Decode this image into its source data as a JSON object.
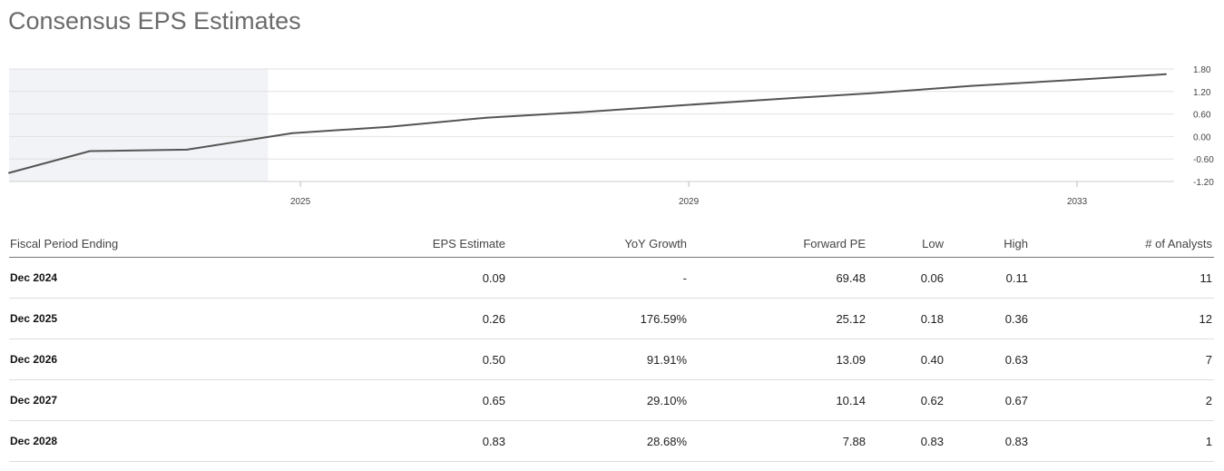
{
  "page_title": "Consensus EPS Estimates",
  "chart_data": {
    "type": "line",
    "x": [
      "2022-01",
      "2022-11",
      "2023-11",
      "2024-12",
      "2025-12",
      "2026-12",
      "2027-12",
      "2028-12",
      "2029-12",
      "2030-12",
      "2031-12",
      "2032-12",
      "2033-12"
    ],
    "series": [
      {
        "values": [
          -0.97,
          -0.39,
          -0.35,
          0.09,
          0.26,
          0.5,
          0.65,
          0.83,
          1.0,
          1.16,
          1.35,
          1.5,
          1.66
        ]
      }
    ],
    "shaded_region": {
      "from": "2022-01",
      "to": "2024-09"
    },
    "x_ticks": [
      "2025",
      "2029",
      "2033"
    ],
    "y_ticks": [
      "1.80",
      "1.20",
      "0.60",
      "0.00",
      "-0.60",
      "-1.20"
    ],
    "ylim": [
      -1.2,
      1.8
    ],
    "grid": true,
    "line_color": "#555555",
    "shade_color": "#f2f3f7"
  },
  "table": {
    "headers": [
      "Fiscal Period Ending",
      "EPS Estimate",
      "YoY Growth",
      "Forward PE",
      "Low",
      "High",
      "# of Analysts"
    ],
    "rows": [
      [
        "Dec 2024",
        "0.09",
        "-",
        "69.48",
        "0.06",
        "0.11",
        "11"
      ],
      [
        "Dec 2025",
        "0.26",
        "176.59%",
        "25.12",
        "0.18",
        "0.36",
        "12"
      ],
      [
        "Dec 2026",
        "0.50",
        "91.91%",
        "13.09",
        "0.40",
        "0.63",
        "7"
      ],
      [
        "Dec 2027",
        "0.65",
        "29.10%",
        "10.14",
        "0.62",
        "0.67",
        "2"
      ],
      [
        "Dec 2028",
        "0.83",
        "28.68%",
        "7.88",
        "0.83",
        "0.83",
        "1"
      ]
    ]
  }
}
